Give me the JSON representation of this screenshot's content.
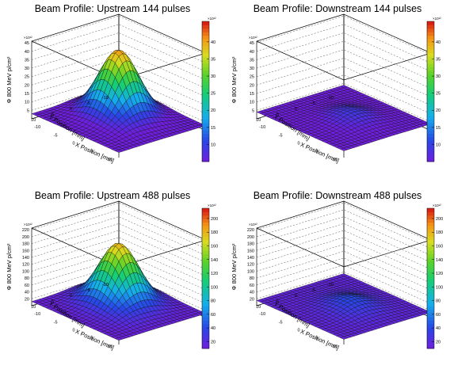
{
  "chart_data": [
    {
      "type": "surface",
      "title": "Beam Profile: Upstream 144 pulses",
      "xlabel": "X Position [mm]",
      "ylabel": "Y Position [mm]",
      "zlabel": "Φ 800 MeV p/cm²",
      "xticks": [
        "-10",
        "-5",
        "0",
        "5",
        "10"
      ],
      "yticks": [
        "-10",
        "-5",
        "0",
        "5",
        "10"
      ],
      "zticks": [
        "5",
        "10",
        "15",
        "20",
        "25",
        "30",
        "35",
        "40",
        "45"
      ],
      "zlim": [
        0,
        46
      ],
      "z_multiplier": "×10¹²",
      "colorbar_ticks": [
        "10",
        "15",
        "20",
        "25",
        "30",
        "35",
        "40"
      ],
      "colorbar_range": [
        5,
        46
      ],
      "peak": 41,
      "base": 3,
      "peak_x": -2,
      "peak_y": 2,
      "grid": true
    },
    {
      "type": "surface",
      "title": "Beam Profile: Downstream 144 pulses",
      "xlabel": "X Position [mm]",
      "ylabel": "Y Position [mm]",
      "zlabel": "Φ 800 MeV p/cm²",
      "xticks": [
        "-10",
        "-5",
        "0",
        "5",
        "10"
      ],
      "yticks": [
        "-10",
        "-5",
        "0",
        "5",
        "10"
      ],
      "zticks": [
        "5",
        "10",
        "15",
        "20",
        "25",
        "30",
        "35",
        "40",
        "45"
      ],
      "zlim": [
        0,
        46
      ],
      "z_multiplier": "×10¹²",
      "colorbar_ticks": [
        "10",
        "15",
        "20",
        "25",
        "30",
        "35",
        "40"
      ],
      "colorbar_range": [
        5,
        46
      ],
      "peak": 9,
      "base": 4,
      "peak_x": 1,
      "peak_y": 1,
      "grid": true
    },
    {
      "type": "surface",
      "title": "Beam Profile: Upstream 488 pulses",
      "xlabel": "X Position [mm]",
      "ylabel": "Y Position [mm]",
      "zlabel": "Φ 800 MeV p/cm²",
      "xticks": [
        "-10",
        "-5",
        "0",
        "5",
        "10"
      ],
      "yticks": [
        "-10",
        "-5",
        "0",
        "5",
        "10"
      ],
      "zticks": [
        "20",
        "40",
        "60",
        "80",
        "100",
        "120",
        "140",
        "160",
        "180",
        "200",
        "220"
      ],
      "zlim": [
        0,
        225
      ],
      "z_multiplier": "×10¹²",
      "colorbar_ticks": [
        "20",
        "40",
        "60",
        "80",
        "100",
        "120",
        "140",
        "160",
        "180",
        "200"
      ],
      "colorbar_range": [
        10,
        215
      ],
      "peak": 182,
      "base": 12,
      "peak_x": -2,
      "peak_y": 2,
      "grid": true
    },
    {
      "type": "surface",
      "title": "Beam Profile: Downstream 488 pulses",
      "xlabel": "X Position [mm]",
      "ylabel": "Y Position [mm]",
      "zlabel": "Φ 800 MeV p/cm²",
      "xticks": [
        "-10",
        "-5",
        "0",
        "5",
        "10"
      ],
      "yticks": [
        "-10",
        "-5",
        "0",
        "5",
        "10"
      ],
      "zticks": [
        "20",
        "40",
        "60",
        "80",
        "100",
        "120",
        "140",
        "160",
        "180",
        "200",
        "220"
      ],
      "zlim": [
        0,
        225
      ],
      "z_multiplier": "×10¹²",
      "colorbar_ticks": [
        "20",
        "40",
        "60",
        "80",
        "100",
        "120",
        "140",
        "160",
        "180",
        "200"
      ],
      "colorbar_range": [
        10,
        215
      ],
      "peak": 42,
      "base": 15,
      "peak_x": 1,
      "peak_y": 1,
      "grid": true
    }
  ]
}
